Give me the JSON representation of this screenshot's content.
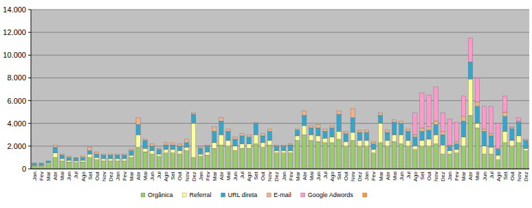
{
  "chart_data": {
    "type": "bar",
    "stacked": true,
    "grid": true,
    "legend": "bottom",
    "categories": [
      "Jan",
      "Fev",
      "Mar",
      "Abr",
      "Mai",
      "Jun",
      "Jul",
      "Ago",
      "Set",
      "Out",
      "Nov",
      "Dez",
      "Jan",
      "Fev",
      "Mar",
      "Abr",
      "Mai",
      "Jun",
      "Jul",
      "Ago",
      "Set",
      "Out",
      "Nov",
      "Dez",
      "Jan",
      "Fev",
      "Mar",
      "Abr",
      "Mai",
      "Jun",
      "Jul",
      "Ago",
      "Set",
      "Out",
      "Nov",
      "Dez",
      "Jan",
      "Fev",
      "Mar",
      "Abr",
      "Mai",
      "Jun",
      "Jul",
      "Ago",
      "Set",
      "Out",
      "Nov",
      "Dez",
      "Jan",
      "Fev",
      "Mar",
      "Abr",
      "Mai",
      "Jun",
      "Jul",
      "Ago",
      "Set",
      "Out",
      "Nov",
      "Dez",
      "Jan",
      "Fev",
      "Mar",
      "Abr",
      "Mai",
      "Jun",
      "Jul",
      "Ago",
      "Set",
      "Out",
      "Nov",
      "Dez"
    ],
    "ylim": [
      0,
      14000
    ],
    "yticks": [
      0,
      {
        "value": 2000,
        "label": "2.000"
      },
      {
        "value": 4000,
        "label": "4.000"
      },
      {
        "value": 6000,
        "label": "6.000"
      },
      {
        "value": 8000,
        "label": "8.000"
      },
      {
        "value": 10000,
        "label": "10.000"
      },
      {
        "value": 12000,
        "label": "12.000"
      },
      {
        "value": 14000,
        "label": "14.000"
      }
    ],
    "series": [
      {
        "name": "Orgânica",
        "color": "#99cc66",
        "values": [
          300,
          300,
          400,
          1000,
          700,
          600,
          550,
          600,
          1000,
          800,
          700,
          700,
          700,
          700,
          1000,
          1900,
          1500,
          1300,
          1100,
          1400,
          1400,
          1300,
          1600,
          1000,
          1100,
          1200,
          1800,
          2100,
          2000,
          1600,
          1800,
          1800,
          2200,
          1900,
          2100,
          1400,
          1400,
          1400,
          2500,
          3000,
          2500,
          2400,
          2300,
          2300,
          2600,
          2000,
          2500,
          2000,
          2000,
          1400,
          2300,
          2000,
          2400,
          2200,
          2000,
          1700,
          2000,
          2000,
          2200,
          1300,
          1300,
          1400,
          2000,
          4700,
          3600,
          1300,
          1300,
          800,
          2300,
          2000,
          2300,
          1600
        ]
      },
      {
        "name": "Referral",
        "color": "#ffff99",
        "values": [
          50,
          50,
          100,
          400,
          200,
          150,
          150,
          150,
          300,
          200,
          200,
          200,
          200,
          200,
          200,
          1100,
          300,
          300,
          200,
          300,
          300,
          300,
          300,
          3000,
          200,
          300,
          500,
          900,
          500,
          400,
          400,
          400,
          800,
          400,
          400,
          200,
          200,
          200,
          400,
          800,
          500,
          500,
          400,
          500,
          700,
          400,
          700,
          500,
          500,
          300,
          1700,
          500,
          600,
          800,
          500,
          300,
          500,
          600,
          800,
          800,
          300,
          300,
          800,
          3200,
          400,
          700,
          600,
          400,
          1000,
          500,
          600,
          200
        ]
      },
      {
        "name": "URL direta",
        "color": "#33a6cc",
        "values": [
          150,
          150,
          200,
          500,
          300,
          250,
          250,
          250,
          300,
          300,
          300,
          300,
          300,
          300,
          400,
          900,
          700,
          400,
          400,
          400,
          400,
          400,
          400,
          800,
          500,
          500,
          1000,
          1200,
          800,
          600,
          700,
          600,
          1000,
          600,
          800,
          400,
          400,
          500,
          500,
          900,
          600,
          700,
          600,
          800,
          1500,
          700,
          1300,
          700,
          700,
          500,
          700,
          700,
          1100,
          1000,
          800,
          800,
          800,
          800,
          900,
          900,
          400,
          500,
          1400,
          1500,
          1500,
          1300,
          1000,
          500,
          1300,
          1000,
          1200,
          700
        ]
      },
      {
        "name": "E-mail",
        "color": "#f4b183",
        "values": [
          0,
          0,
          0,
          200,
          100,
          100,
          50,
          100,
          300,
          200,
          100,
          100,
          100,
          100,
          100,
          600,
          100,
          200,
          100,
          200,
          200,
          200,
          300,
          100,
          100,
          100,
          400,
          300,
          200,
          200,
          200,
          200,
          100,
          200,
          200,
          100,
          100,
          100,
          100,
          400,
          200,
          300,
          200,
          200,
          300,
          200,
          800,
          200,
          200,
          200,
          200,
          200,
          200,
          200,
          200,
          200,
          300,
          300,
          300,
          300,
          100,
          200,
          400,
          0,
          400,
          200,
          200,
          100,
          400,
          100,
          100,
          100
        ]
      },
      {
        "name": "Google Adwords",
        "color": "#ff99cc",
        "values": [
          0,
          0,
          0,
          0,
          0,
          0,
          0,
          0,
          0,
          0,
          0,
          0,
          0,
          0,
          0,
          0,
          0,
          0,
          0,
          0,
          0,
          0,
          0,
          0,
          0,
          0,
          0,
          0,
          0,
          0,
          0,
          0,
          0,
          0,
          0,
          0,
          0,
          0,
          0,
          0,
          0,
          0,
          0,
          0,
          0,
          0,
          0,
          0,
          0,
          0,
          0,
          0,
          0,
          0,
          0,
          1900,
          3100,
          2800,
          3000,
          1600,
          2300,
          1700,
          1800,
          2100,
          2100,
          2000,
          2400,
          2200,
          1400,
          100,
          300,
          0
        ]
      },
      {
        "name": null,
        "color": "#ff9933",
        "values": [
          0,
          0,
          0,
          0,
          0,
          0,
          0,
          0,
          0,
          0,
          0,
          0,
          0,
          0,
          0,
          0,
          0,
          0,
          0,
          0,
          0,
          0,
          0,
          0,
          0,
          0,
          0,
          0,
          0,
          0,
          0,
          0,
          0,
          0,
          0,
          0,
          0,
          0,
          0,
          0,
          0,
          0,
          0,
          0,
          0,
          0,
          0,
          0,
          0,
          0,
          0,
          0,
          0,
          0,
          0,
          0,
          0,
          0,
          0,
          0,
          0,
          0,
          0,
          0,
          0,
          0,
          0,
          0,
          0,
          0,
          0,
          0
        ]
      }
    ]
  }
}
